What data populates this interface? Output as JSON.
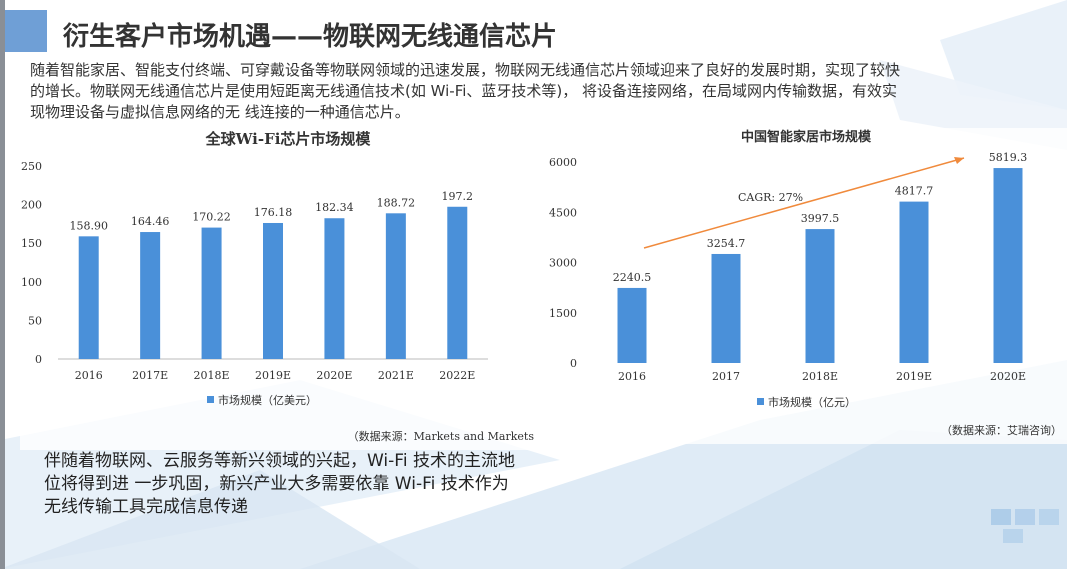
{
  "title": "衍生客户市场机遇——物联网无线通信芯片",
  "intro": "随着智能家居、智能支付终端、可穿戴设备等物联网领域的迅速发展，物联网无线通信芯片领域迎来了良好的发展时期，实现了较快的增长。物联网无线通信芯片是使用短距离无线通信技术(如 Wi-Fi、蓝牙技术等)， 将设备连接网络，在局域网内传输数据，有效实现物理设备与虚拟信息网络的无 线连接的一种通信芯片。",
  "bottom_text": "伴随着物联网、云服务等新兴领域的兴起，Wi-Fi 技术的主流地位将得到进 一步巩固，新兴产业大多需要依靠 Wi-Fi 技术作为无线传输工具完成信息传递",
  "colors": {
    "bar": "#4a90d9",
    "arrow": "#f08a3c",
    "title_square": "#6f9fd6"
  },
  "chart_data": [
    {
      "type": "bar",
      "title": "全球Wi-Fi芯片市场规模",
      "categories": [
        "2016",
        "2017E",
        "2018E",
        "2019E",
        "2020E",
        "2021E",
        "2022E"
      ],
      "series": [
        {
          "name": "市场规模（亿美元）",
          "values": [
            158.9,
            164.46,
            170.22,
            176.18,
            182.34,
            188.72,
            197.2
          ]
        }
      ],
      "data_labels": [
        "158.90",
        "164.46",
        "170.22",
        "176.18",
        "182.34",
        "188.72",
        "197.2"
      ],
      "yticks": [
        0,
        50,
        100,
        150,
        200,
        250
      ],
      "ylim": [
        0,
        250
      ],
      "legend_position": "bottom",
      "source": "（数据来源：Markets and Markets"
    },
    {
      "type": "bar",
      "title": "中国智能家居市场规模",
      "categories": [
        "2016",
        "2017",
        "2018E",
        "2019E",
        "2020E"
      ],
      "series": [
        {
          "name": "市场规模（亿元）",
          "values": [
            2240.5,
            3254.7,
            3997.5,
            4817.7,
            5819.3
          ]
        }
      ],
      "data_labels": [
        "2240.5",
        "3254.7",
        "3997.5",
        "4817.7",
        "5819.3"
      ],
      "yticks": [
        0,
        1500,
        3000,
        4500,
        6000
      ],
      "ylim": [
        0,
        6000
      ],
      "annotation": "CAGR: 27%",
      "legend_position": "bottom",
      "source": "（数据来源：艾瑞咨询）"
    }
  ]
}
